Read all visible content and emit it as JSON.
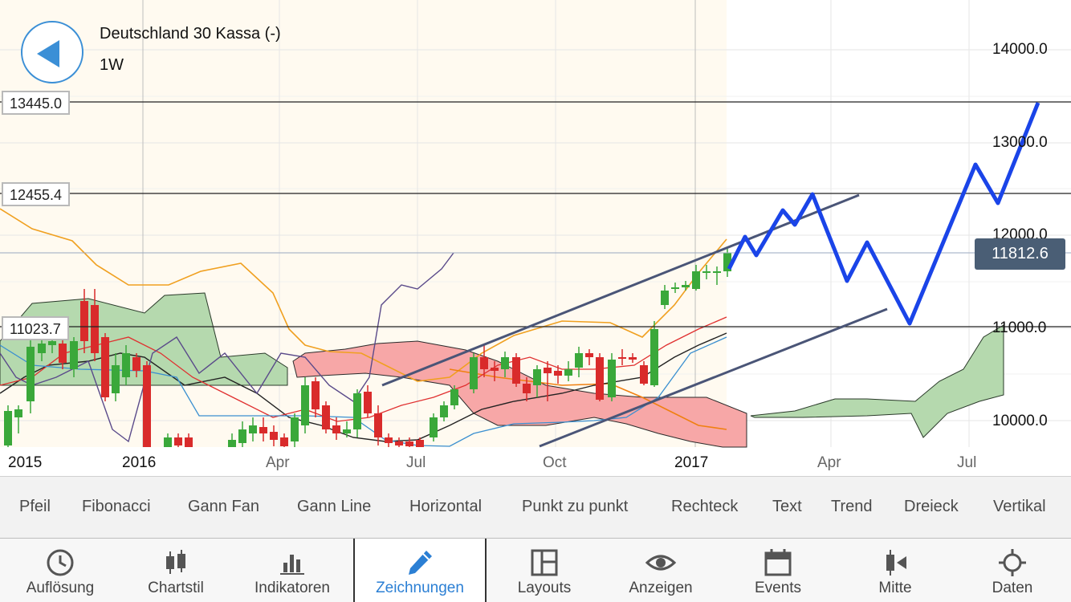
{
  "header": {
    "instrument": "Deutschland 30 Kassa (-)",
    "timeframe": "1W",
    "back_icon": "back-arrow-icon"
  },
  "levels": [
    {
      "label": "13445.0",
      "value": 13445.0
    },
    {
      "label": "12455.4",
      "value": 12455.4
    },
    {
      "label": "11023.7",
      "value": 11023.7
    }
  ],
  "current_price": {
    "label": "11812.6",
    "value": 11812.6
  },
  "y_axis": {
    "ticks": [
      "14000.0",
      "13000.0",
      "12000.0",
      "11000.0",
      "10000.0"
    ]
  },
  "x_axis": {
    "labels": [
      {
        "text": "2015",
        "year": true
      },
      {
        "text": "2016",
        "year": true
      },
      {
        "text": "Apr",
        "year": false
      },
      {
        "text": "Jul",
        "year": false
      },
      {
        "text": "Oct",
        "year": false
      },
      {
        "text": "2017",
        "year": true
      },
      {
        "text": "Apr",
        "year": false
      },
      {
        "text": "Jul",
        "year": false
      }
    ]
  },
  "tools": [
    "Pfeil",
    "Fibonacci",
    "Gann Fan",
    "Gann Line",
    "Horizontal",
    "Punkt zu punkt",
    "Rechteck",
    "Text",
    "Trend",
    "Dreieck",
    "Vertikal"
  ],
  "tabs": [
    {
      "label": "Auflösung",
      "icon": "clock-icon",
      "active": false
    },
    {
      "label": "Chartstil",
      "icon": "candlestick-icon",
      "active": false
    },
    {
      "label": "Indikatoren",
      "icon": "bar-chart-icon",
      "active": false
    },
    {
      "label": "Zeichnungen",
      "icon": "pencil-icon",
      "active": true
    },
    {
      "label": "Layouts",
      "icon": "layout-icon",
      "active": false
    },
    {
      "label": "Anzeigen",
      "icon": "eye-icon",
      "active": false
    },
    {
      "label": "Events",
      "icon": "calendar-icon",
      "active": false
    },
    {
      "label": "Mitte",
      "icon": "center-candle-icon",
      "active": false
    },
    {
      "label": "Daten",
      "icon": "crosshair-icon",
      "active": false
    }
  ],
  "colors": {
    "accent": "#2b7fd4",
    "bull_candle": "#3aa83a",
    "bear_candle": "#d92b2b",
    "forecast_line": "#1a44e8",
    "channel_line": "#4a5577",
    "kumo_bull": "#b5d9ae",
    "kumo_bear": "#f7a7a7",
    "current_price_bg": "#4a5e75"
  }
}
